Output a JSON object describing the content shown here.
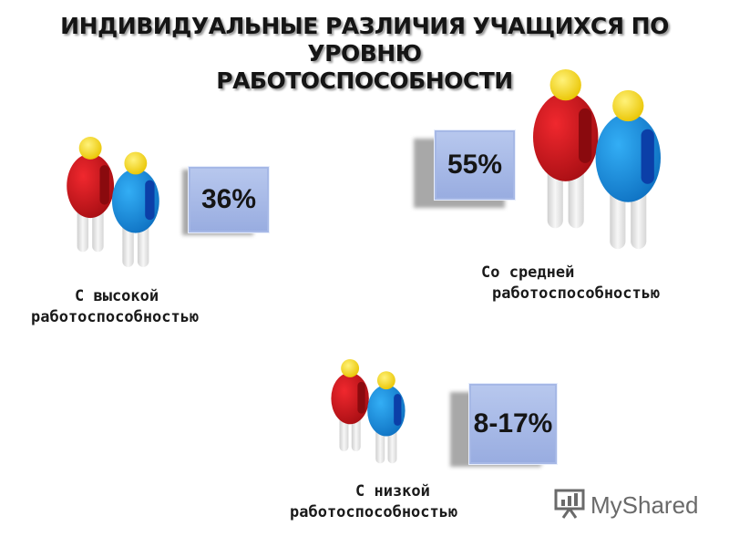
{
  "title": {
    "line1": "ИНДИВИДУАЛЬНЫЕ РАЗЛИЧИЯ УЧАЩИХСЯ ПО УРОВНЮ",
    "line2": "РАБОТОСПОСОБНОСТИ"
  },
  "groups": [
    {
      "id": "high",
      "percent": "36%",
      "caption_line1": "С высокой",
      "caption_line2": "работоспособностью"
    },
    {
      "id": "medium",
      "percent": "55%",
      "caption_line1": "Со средней",
      "caption_line2": "работоспособностью"
    },
    {
      "id": "low",
      "percent": "8-17%",
      "caption_line1": "С низкой",
      "caption_line2": "работоспособностью"
    }
  ],
  "colors": {
    "red_figure": "#c8141a",
    "blue_figure": "#1e8fdc",
    "head": "#f5d800",
    "box": "#a9bbe8"
  },
  "watermark": {
    "text": "MyShared",
    "icon": "presentation-board-icon"
  }
}
